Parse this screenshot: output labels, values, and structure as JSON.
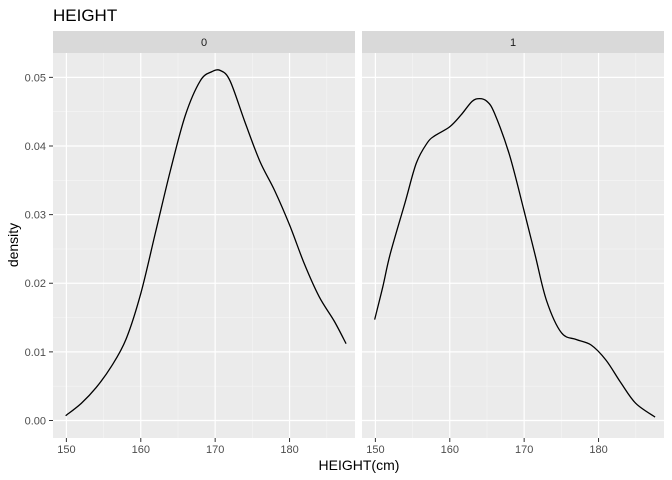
{
  "chart_data": {
    "type": "line",
    "title": "HEIGHT",
    "xlabel": "HEIGHT(cm)",
    "ylabel": "density",
    "xlim": [
      148.2,
      188.8
    ],
    "ylim": [
      -0.00255,
      0.05355
    ],
    "x_ticks": [
      150,
      160,
      170,
      180
    ],
    "x_tick_labels": [
      "150",
      "160",
      "170",
      "180"
    ],
    "y_ticks": [
      0,
      0.01,
      0.02,
      0.03,
      0.04,
      0.05
    ],
    "y_tick_labels": [
      "0.00",
      "0.01",
      "0.02",
      "0.03",
      "0.04",
      "0.05"
    ],
    "grid": true,
    "legend": "none",
    "panels": [
      {
        "strip": "0",
        "x": [
          149.9,
          152,
          154,
          156,
          158,
          160,
          162,
          164,
          166,
          168,
          169.5,
          170.7,
          172,
          174,
          176,
          178,
          180,
          182,
          184,
          186,
          187.6
        ],
        "y": [
          0.0007,
          0.0025,
          0.0048,
          0.0078,
          0.0118,
          0.0185,
          0.0275,
          0.0365,
          0.0445,
          0.0495,
          0.0508,
          0.051,
          0.0495,
          0.0435,
          0.0378,
          0.0335,
          0.0285,
          0.0228,
          0.018,
          0.0145,
          0.0112
        ]
      },
      {
        "strip": "1",
        "x": [
          149.9,
          151,
          152,
          154,
          155.5,
          157,
          158,
          160,
          161.5,
          163,
          164,
          165,
          166,
          168,
          170,
          171.5,
          173,
          175,
          177,
          179,
          181,
          183,
          185,
          187.6
        ],
        "y": [
          0.0147,
          0.0195,
          0.0243,
          0.0318,
          0.0375,
          0.0405,
          0.0415,
          0.0428,
          0.0445,
          0.0465,
          0.0469,
          0.0465,
          0.0448,
          0.0388,
          0.0305,
          0.024,
          0.0175,
          0.0128,
          0.0118,
          0.011,
          0.0088,
          0.0055,
          0.0025,
          0.0005
        ]
      }
    ]
  }
}
